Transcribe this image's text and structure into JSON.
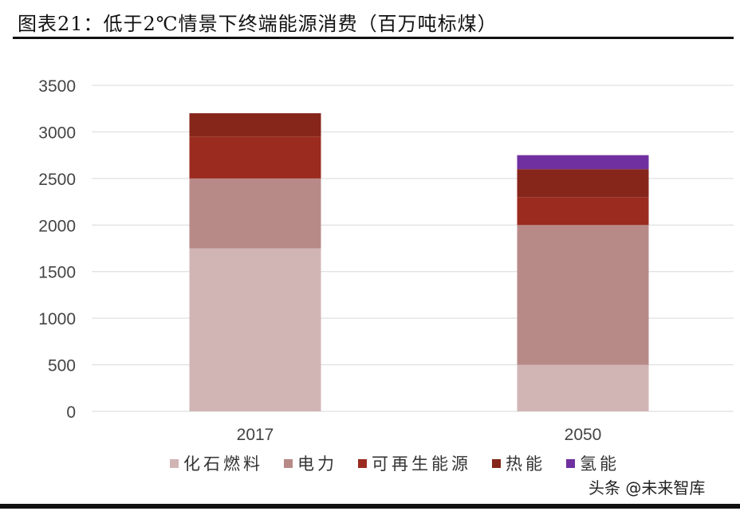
{
  "title": "图表21：低于2℃情景下终端能源消费（百万吨标煤）",
  "watermark": "头条 @未来智库",
  "chart_data": {
    "type": "bar",
    "stacked": true,
    "title": "图表21：低于2℃情景下终端能源消费（百万吨标煤）",
    "categories": [
      "2017",
      "2050"
    ],
    "series": [
      {
        "name": "化石燃料",
        "color": "#d1b5b5",
        "values": [
          1750,
          500
        ]
      },
      {
        "name": "电力",
        "color": "#b88a87",
        "values": [
          750,
          1500
        ]
      },
      {
        "name": "可再生能源",
        "color": "#9b2b1f",
        "values": [
          450,
          300
        ]
      },
      {
        "name": "热能",
        "color": "#86261b",
        "values": [
          250,
          300
        ]
      },
      {
        "name": "氢能",
        "color": "#7030a0",
        "values": [
          0,
          150
        ]
      }
    ],
    "ylim": [
      0,
      3500
    ],
    "yticks": [
      "0",
      "500",
      "1000",
      "1500",
      "2000",
      "2500",
      "3000",
      "3500"
    ],
    "grid": true,
    "legend": "bottom"
  }
}
